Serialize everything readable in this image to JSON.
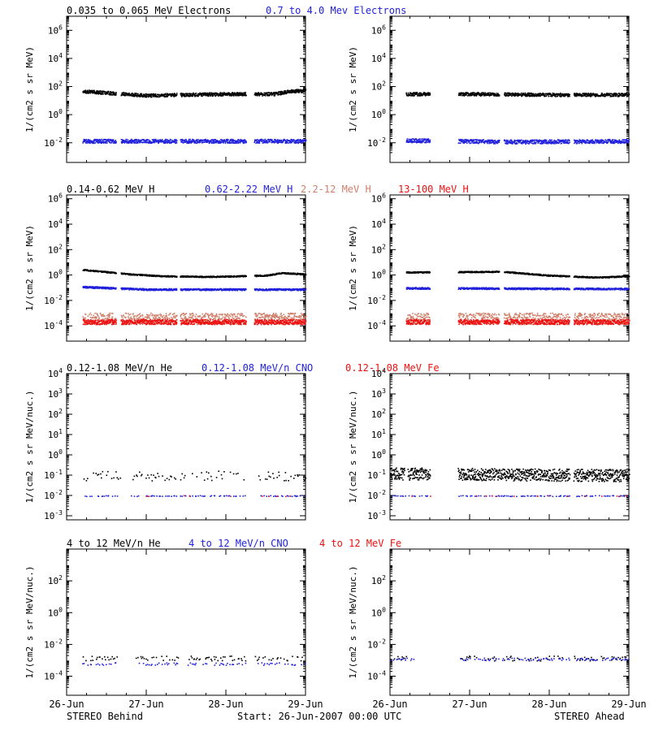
{
  "colors": {
    "black": "#000000",
    "blue": "#2222dd",
    "salmon": "#d0806a",
    "red": "#ee1111"
  },
  "footer": {
    "left": "STEREO Behind",
    "center": "Start: 26-Jun-2007 00:00 UTC",
    "right": "STEREO Ahead"
  },
  "x_ticks": [
    "26-Jun",
    "27-Jun",
    "28-Jun",
    "29-Jun"
  ],
  "chart_data": [
    {
      "type": "scatter",
      "row": 0,
      "legend": [
        {
          "text": "0.035 to 0.065 MeV Electrons",
          "color": "black"
        },
        {
          "text": "0.7 to 4.0 Mev Electrons",
          "color": "blue"
        }
      ],
      "ylabel": "1/(cm2 s sr MeV)",
      "log_scale": true,
      "ylim_exp": [
        -3.4,
        7
      ],
      "y_ticks": [
        -2,
        0,
        2,
        4,
        6
      ],
      "xlim_days": [
        0,
        3
      ],
      "panels": [
        {
          "spacecraft": "STEREO Behind",
          "data_start_day": 0.2,
          "gaps": [
            [
              0.62,
              0.68
            ],
            [
              1.38,
              1.42
            ],
            [
              2.25,
              2.35
            ]
          ],
          "series": [
            {
              "color": "black",
              "points": [
                [
                  0.2,
                  1.7
                ],
                [
                  0.6,
                  1.55
                ],
                [
                  1.0,
                  1.4
                ],
                [
                  1.5,
                  1.45
                ],
                [
                  2.0,
                  1.5
                ],
                [
                  2.6,
                  1.5
                ],
                [
                  2.8,
                  1.7
                ],
                [
                  3.0,
                  1.75
                ]
              ],
              "scatter": 0.12
            },
            {
              "color": "blue",
              "points": [
                [
                  0.2,
                  -1.85
                ],
                [
                  1.5,
                  -1.85
                ],
                [
                  3.0,
                  -1.85
                ]
              ],
              "scatter": 0.14
            }
          ]
        },
        {
          "spacecraft": "STEREO Ahead",
          "data_start_day": 0.2,
          "gaps": [
            [
              0.5,
              0.85
            ],
            [
              1.37,
              1.43
            ],
            [
              2.25,
              2.3
            ]
          ],
          "series": [
            {
              "color": "black",
              "points": [
                [
                  0.2,
                  1.5
                ],
                [
                  1.0,
                  1.5
                ],
                [
                  2.0,
                  1.45
                ],
                [
                  3.0,
                  1.45
                ]
              ],
              "scatter": 0.12
            },
            {
              "color": "blue",
              "points": [
                [
                  0.2,
                  -1.8
                ],
                [
                  1.5,
                  -1.9
                ],
                [
                  3.0,
                  -1.85
                ]
              ],
              "scatter": 0.14
            }
          ]
        }
      ]
    },
    {
      "type": "scatter",
      "row": 1,
      "legend": [
        {
          "text": "0.14-0.62 MeV H",
          "color": "black"
        },
        {
          "text": "0.62-2.22 MeV H",
          "color": "blue"
        },
        {
          "text": "2.2-12 MeV H",
          "color": "salmon"
        },
        {
          "text": "13-100 MeV H",
          "color": "red"
        }
      ],
      "ylabel": "1/(cm2 s sr MeV)",
      "log_scale": true,
      "ylim_exp": [
        -5.2,
        6.3
      ],
      "y_ticks": [
        -4,
        -2,
        0,
        2,
        4,
        6
      ],
      "xlim_days": [
        0,
        3
      ],
      "panels": [
        {
          "spacecraft": "STEREO Behind",
          "data_start_day": 0.2,
          "gaps": [
            [
              0.62,
              0.68
            ],
            [
              1.38,
              1.42
            ],
            [
              2.25,
              2.35
            ]
          ],
          "series": [
            {
              "color": "black",
              "points": [
                [
                  0.2,
                  0.45
                ],
                [
                  0.45,
                  0.3
                ],
                [
                  0.8,
                  0.1
                ],
                [
                  1.2,
                  -0.05
                ],
                [
                  1.8,
                  -0.1
                ],
                [
                  2.5,
                  0.0
                ],
                [
                  2.7,
                  0.2
                ],
                [
                  3.0,
                  0.1
                ]
              ],
              "scatter": 0.05
            },
            {
              "color": "blue",
              "points": [
                [
                  0.2,
                  -0.9
                ],
                [
                  1.0,
                  -1.1
                ],
                [
                  2.0,
                  -1.1
                ],
                [
                  3.0,
                  -1.1
                ]
              ],
              "scatter": 0.07
            },
            {
              "color": "salmon",
              "points": [
                [
                  0.2,
                  -3.4
                ],
                [
                  3.0,
                  -3.4
                ]
              ],
              "scatter": 0.45
            },
            {
              "color": "red",
              "points": [
                [
                  0.2,
                  -3.65
                ],
                [
                  3.0,
                  -3.65
                ]
              ],
              "scatter": 0.2
            }
          ]
        },
        {
          "spacecraft": "STEREO Ahead",
          "data_start_day": 0.2,
          "gaps": [
            [
              0.5,
              0.85
            ],
            [
              1.37,
              1.43
            ],
            [
              2.25,
              2.3
            ]
          ],
          "series": [
            {
              "color": "black",
              "points": [
                [
                  0.2,
                  0.25
                ],
                [
                  1.4,
                  0.3
                ],
                [
                  2.0,
                  0.0
                ],
                [
                  2.6,
                  -0.15
                ],
                [
                  3.0,
                  -0.05
                ]
              ],
              "scatter": 0.05
            },
            {
              "color": "blue",
              "points": [
                [
                  0.2,
                  -1.0
                ],
                [
                  3.0,
                  -1.05
                ]
              ],
              "scatter": 0.07
            },
            {
              "color": "salmon",
              "points": [
                [
                  0.2,
                  -3.4
                ],
                [
                  3.0,
                  -3.4
                ]
              ],
              "scatter": 0.45
            },
            {
              "color": "red",
              "points": [
                [
                  0.2,
                  -3.65
                ],
                [
                  3.0,
                  -3.65
                ]
              ],
              "scatter": 0.2
            }
          ]
        }
      ]
    },
    {
      "type": "scatter",
      "row": 2,
      "legend": [
        {
          "text": "0.12-1.08 MeV/n He",
          "color": "black"
        },
        {
          "text": "0.12-1.08 MeV/n CNO",
          "color": "blue"
        },
        {
          "text": "0.12-1.08 MeV Fe",
          "color": "red"
        }
      ],
      "ylabel": "1/(cm2 s sr MeV/nuc.)",
      "log_scale": true,
      "ylim_exp": [
        -3.2,
        4
      ],
      "y_ticks": [
        -3,
        -2,
        -1,
        0,
        1,
        2,
        3,
        4
      ],
      "xlim_days": [
        0,
        3
      ],
      "panels": [
        {
          "spacecraft": "STEREO Behind",
          "data_start_day": 0.2,
          "gaps": [
            [
              0.68,
              0.8
            ],
            [
              1.38,
              1.42
            ],
            [
              2.25,
              2.4
            ]
          ],
          "series": [
            {
              "color": "black",
              "points": [
                [
                  0.2,
                  -1.0
                ],
                [
                  3.0,
                  -1.0
                ]
              ],
              "scatter": 0.25,
              "sparse": true
            },
            {
              "color": "blue",
              "points": [
                [
                  0.2,
                  -2.0
                ],
                [
                  3.0,
                  -2.0
                ]
              ],
              "scatter": 0.02,
              "sparse": true
            },
            {
              "color": "red",
              "points": [
                [
                  0.2,
                  -2.0
                ],
                [
                  3.0,
                  -2.0
                ]
              ],
              "scatter": 0.02,
              "sparse": true,
              "rare": true
            }
          ]
        },
        {
          "spacecraft": "STEREO Ahead",
          "data_start_day": 0.0,
          "gaps": [
            [
              0.18,
              0.22
            ],
            [
              0.5,
              0.85
            ],
            [
              2.25,
              2.3
            ]
          ],
          "series": [
            {
              "color": "black",
              "points": [
                [
                  0.0,
                  -0.9
                ],
                [
                  3.0,
                  -1.0
                ]
              ],
              "scatter": 0.3
            },
            {
              "color": "blue",
              "points": [
                [
                  0.0,
                  -2.0
                ],
                [
                  3.0,
                  -2.0
                ]
              ],
              "scatter": 0.02,
              "sparse": true
            },
            {
              "color": "red",
              "points": [
                [
                  0.0,
                  -2.0
                ],
                [
                  3.0,
                  -2.0
                ]
              ],
              "scatter": 0.02,
              "sparse": true,
              "rare": true
            }
          ]
        }
      ]
    },
    {
      "type": "scatter",
      "row": 3,
      "legend": [
        {
          "text": "4 to 12 MeV/n He",
          "color": "black"
        },
        {
          "text": "4 to 12 MeV/n CNO",
          "color": "blue"
        },
        {
          "text": "4 to 12 MeV Fe",
          "color": "red"
        }
      ],
      "ylabel": "1/(cm2 s sr MeV/nuc.)",
      "log_scale": true,
      "ylim_exp": [
        -5.2,
        4
      ],
      "y_ticks": [
        -4,
        -2,
        0,
        2
      ],
      "xlim_days": [
        0,
        3
      ],
      "panels": [
        {
          "spacecraft": "STEREO Behind",
          "data_start_day": 0.2,
          "gaps": [
            [
              0.65,
              0.85
            ],
            [
              1.4,
              1.5
            ],
            [
              2.25,
              2.35
            ]
          ],
          "series": [
            {
              "color": "black",
              "points": [
                [
                  0.2,
                  -2.85
                ],
                [
                  3.0,
                  -2.85
                ]
              ],
              "scatter": 0.15,
              "sparse": true
            },
            {
              "color": "blue",
              "points": [
                [
                  0.2,
                  -3.2
                ],
                [
                  3.0,
                  -3.2
                ]
              ],
              "scatter": 0.08,
              "sparse": true
            }
          ]
        },
        {
          "spacecraft": "STEREO Ahead",
          "data_start_day": 0.0,
          "gaps": [
            [
              0.3,
              0.85
            ],
            [
              2.25,
              2.3
            ]
          ],
          "series": [
            {
              "color": "black",
              "points": [
                [
                  0.0,
                  -2.85
                ],
                [
                  3.0,
                  -2.85
                ]
              ],
              "scatter": 0.15,
              "sparse": true
            },
            {
              "color": "blue",
              "points": [
                [
                  0.0,
                  -2.9
                ],
                [
                  3.0,
                  -2.9
                ]
              ],
              "scatter": 0.08,
              "sparse": true
            }
          ]
        }
      ]
    }
  ]
}
